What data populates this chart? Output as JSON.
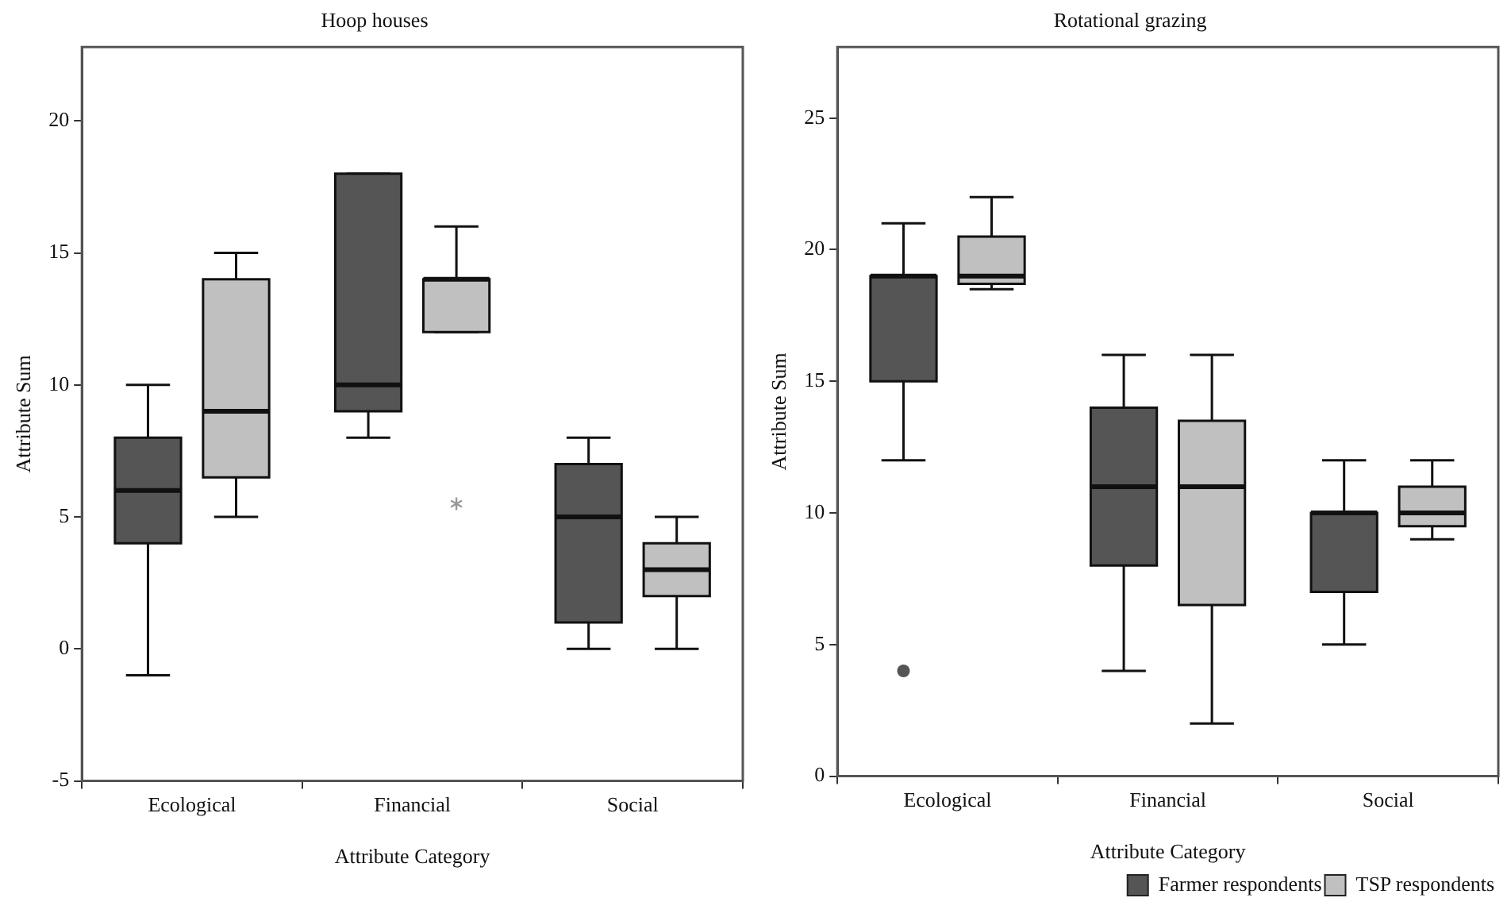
{
  "chart_data": [
    {
      "type": "box",
      "title": "Hoop houses",
      "xlabel": "Attribute Category",
      "ylabel": "Attribute Sum",
      "categories": [
        "Ecological",
        "Financial",
        "Social"
      ],
      "ylim": [
        -5,
        22.8
      ],
      "yticks": [
        -5,
        0,
        5,
        10,
        15,
        20
      ],
      "grid": false,
      "legend": false,
      "marker": "star",
      "series": [
        {
          "color": "#555555",
          "boxes": [
            {
              "low": -1,
              "q1": 4,
              "median": 6,
              "q3": 8,
              "high": 10
            },
            {
              "low": 8,
              "q1": 9,
              "median": 10,
              "q3": 18,
              "high": 18
            },
            {
              "low": 0,
              "q1": 1,
              "median": 5,
              "q3": 7,
              "high": 8
            }
          ]
        },
        {
          "color": "#c0c0c0",
          "boxes": [
            {
              "low": 5,
              "q1": 6.5,
              "median": 9,
              "q3": 14,
              "high": 15
            },
            {
              "low": 12,
              "q1": 12,
              "median": 14,
              "q3": 14,
              "high": 16,
              "outliers": [
                5.5
              ]
            },
            {
              "low": 0,
              "q1": 2,
              "median": 3,
              "q3": 4,
              "high": 5
            }
          ]
        }
      ]
    },
    {
      "type": "box",
      "title": "Rotational grazing",
      "xlabel": "Attribute Category",
      "ylabel": "Attribute Sum",
      "categories": [
        "Ecological",
        "Financial",
        "Social"
      ],
      "ylim": [
        0,
        27.7
      ],
      "yticks": [
        0,
        5,
        10,
        15,
        20,
        25
      ],
      "grid": false,
      "legend": "bottom right",
      "marker": "circle",
      "series": [
        {
          "name": "Farmer respondents",
          "color": "#555555",
          "boxes": [
            {
              "low": 12,
              "q1": 15,
              "median": 19,
              "q3": 19,
              "high": 21,
              "outliers": [
                4
              ]
            },
            {
              "low": 4,
              "q1": 8,
              "median": 11,
              "q3": 14,
              "high": 16
            },
            {
              "low": 5,
              "q1": 7,
              "median": 10,
              "q3": 10,
              "high": 12
            }
          ]
        },
        {
          "name": "TSP respondents",
          "color": "#c0c0c0",
          "boxes": [
            {
              "low": 18.5,
              "q1": 18.7,
              "median": 19,
              "q3": 20.5,
              "high": 22
            },
            {
              "low": 2,
              "q1": 6.5,
              "median": 11,
              "q3": 13.5,
              "high": 16
            },
            {
              "low": 9,
              "q1": 9.5,
              "median": 10,
              "q3": 11,
              "high": 12
            }
          ]
        }
      ]
    }
  ]
}
